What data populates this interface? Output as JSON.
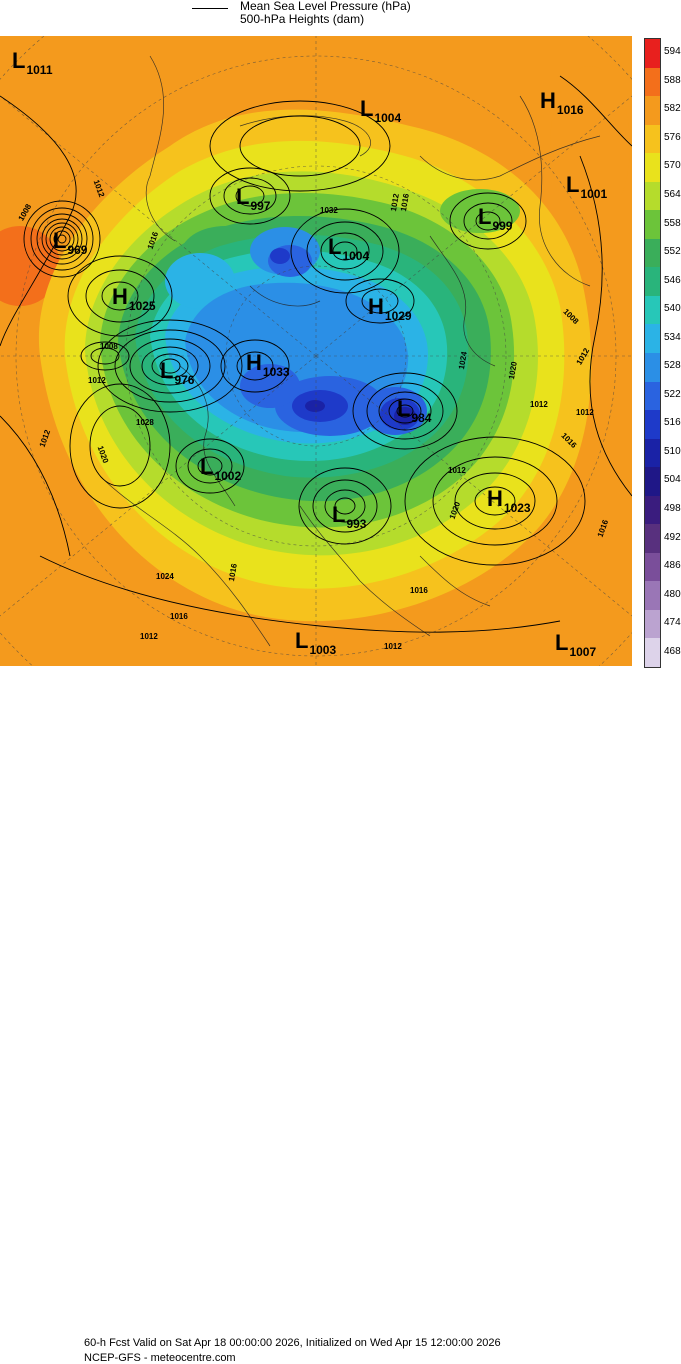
{
  "legend": {
    "line1": "Mean Sea Level Pressure (hPa)",
    "line2": "500-hPa Heights (dam)"
  },
  "systems": [
    {
      "type": "L",
      "value": "1011"
    },
    {
      "type": "L",
      "value": "1004"
    },
    {
      "type": "H",
      "value": "1016"
    },
    {
      "type": "L",
      "value": "1001"
    },
    {
      "type": "L",
      "value": "997"
    },
    {
      "type": "L",
      "value": "999"
    },
    {
      "type": "L",
      "value": "969"
    },
    {
      "type": "L",
      "value": "1004"
    },
    {
      "type": "H",
      "value": "1025"
    },
    {
      "type": "H",
      "value": "1029"
    },
    {
      "type": "L",
      "value": "976"
    },
    {
      "type": "H",
      "value": "1033"
    },
    {
      "type": "L",
      "value": "984"
    },
    {
      "type": "L",
      "value": "1002"
    },
    {
      "type": "L",
      "value": "993"
    },
    {
      "type": "H",
      "value": "1023"
    },
    {
      "type": "L",
      "value": "1003"
    },
    {
      "type": "L",
      "value": "1007"
    }
  ],
  "isobar_labels": [
    "1012",
    "1008",
    "1016",
    "1032",
    "1012",
    "1016",
    "1008",
    "1012",
    "1008",
    "1012",
    "1012",
    "1020",
    "1024",
    "1012",
    "1012",
    "1016",
    "1020",
    "1028",
    "1012",
    "1020",
    "1016",
    "1016",
    "1016",
    "1012",
    "1016",
    "1024",
    "1012"
  ],
  "colorbar": {
    "labels": [
      "594",
      "588",
      "582",
      "576",
      "570",
      "564",
      "558",
      "552",
      "546",
      "540",
      "534",
      "528",
      "522",
      "516",
      "510",
      "504",
      "498",
      "492",
      "486",
      "480",
      "474",
      "468"
    ],
    "colors": [
      "#e8201e",
      "#f36f1b",
      "#f49a1d",
      "#f6c21d",
      "#e9e21c",
      "#b5dc2c",
      "#6cc43a",
      "#3aae5a",
      "#29b47b",
      "#27c7b8",
      "#2bb3e6",
      "#2b8fe6",
      "#2a63e0",
      "#1e3ac9",
      "#1a22a6",
      "#1f1787",
      "#3a1c7e",
      "#58307e",
      "#7a4e9a",
      "#9a76b6",
      "#bba3d0",
      "#ddd3ea"
    ]
  },
  "footer": {
    "line1": "60-h Fcst Valid on Sat Apr 18 00:00:00 2026, Initialized on Wed Apr 15 12:00:00 2026",
    "line2": "NCEP-GFS  - meteocentre.com"
  }
}
